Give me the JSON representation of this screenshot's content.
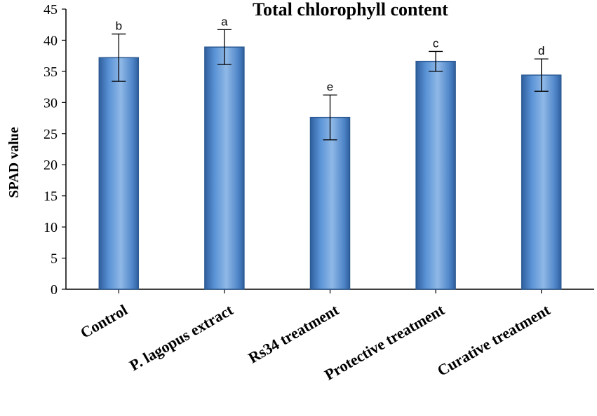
{
  "chart_data": {
    "type": "bar",
    "title": "Total chlorophyll content",
    "xlabel": "",
    "ylabel": "SPAD value",
    "ylim": [
      0,
      45
    ],
    "yticks": [
      0,
      5,
      10,
      15,
      20,
      25,
      30,
      35,
      40,
      45
    ],
    "categories": [
      "Control",
      "P. lagopus extract",
      "Rs34 treatment",
      "Protective treatment",
      "Curative treatment"
    ],
    "values": [
      37.2,
      38.9,
      27.6,
      36.6,
      34.4
    ],
    "errors": [
      3.8,
      2.8,
      3.6,
      1.6,
      2.6
    ],
    "significance": [
      "b",
      "a",
      "e",
      "c",
      "d"
    ],
    "grid": false,
    "legend": "none",
    "colors": {
      "bar_fill_light": "#8fb8e6",
      "bar_fill_mid": "#4f86c9",
      "bar_fill_dark": "#2f5f9e",
      "bar_edge": "#2c5a92",
      "axis": "#000000"
    }
  }
}
